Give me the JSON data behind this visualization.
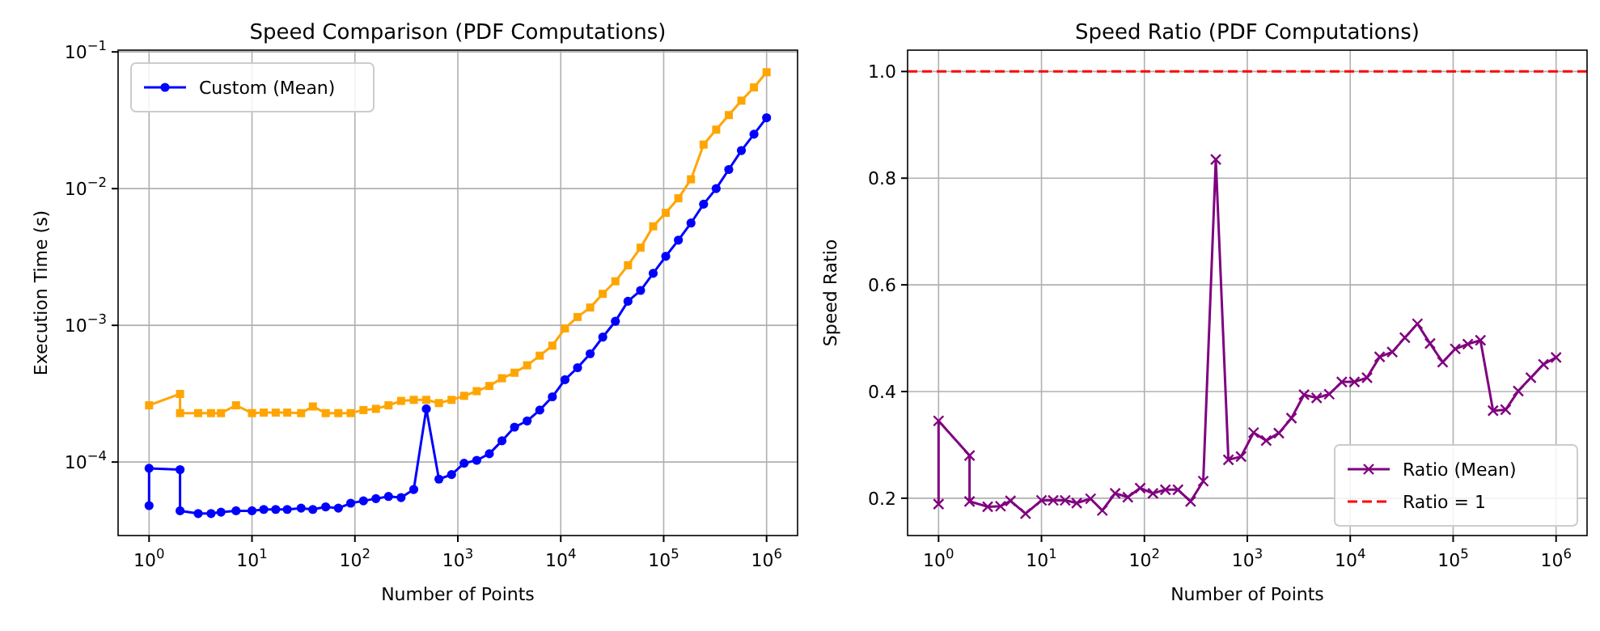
{
  "chart_data": [
    {
      "type": "line",
      "title": "Speed Comparison (PDF Computations)",
      "xlabel": "Number of Points",
      "ylabel": "Execution Time (s)",
      "log": "xy",
      "grid": true,
      "legend": "top left",
      "x": [
        1,
        1,
        2,
        2,
        3,
        4,
        5,
        7,
        10,
        13,
        17,
        22,
        30,
        39,
        52,
        69,
        91,
        121,
        160,
        212,
        281,
        373,
        494,
        655,
        869,
        1151,
        1526,
        2024,
        2683,
        3556,
        4715,
        6251,
        8286,
        10985,
        14563,
        19307,
        25595,
        33932,
        44984,
        59636,
        79060,
        104811,
        138950,
        184207,
        244205,
        323746,
        429193,
        568987,
        754312,
        1000000
      ],
      "xlim": [
        0.5,
        2000000
      ],
      "xticks": [
        {
          "value": 1,
          "label": "10$^{0}$"
        },
        {
          "value": 10,
          "label": "10$^{1}$"
        },
        {
          "value": 100,
          "label": "10$^{2}$"
        },
        {
          "value": 1000,
          "label": "10$^{3}$"
        },
        {
          "value": 10000,
          "label": "10$^{4}$"
        },
        {
          "value": 100000,
          "label": "10$^{5}$"
        },
        {
          "value": 1000000,
          "label": "10$^{6}$"
        }
      ],
      "ylim": [
        2.9e-05,
        0.103
      ],
      "yticks": [
        {
          "value": 0.0001,
          "label": "10$^{−4}$"
        },
        {
          "value": 0.001,
          "label": "10$^{−3}$"
        },
        {
          "value": 0.01,
          "label": "10$^{−2}$"
        },
        {
          "value": 0.1,
          "label": "10$^{−1}$"
        }
      ],
      "series": [
        {
          "name": "Custom (Mean)",
          "color": "#0000ff",
          "marker": "circle",
          "values": [
            4.8e-05,
            9e-05,
            8.8e-05,
            4.4e-05,
            4.2e-05,
            4.2e-05,
            4.3e-05,
            4.4e-05,
            4.4e-05,
            4.5e-05,
            4.5e-05,
            4.5e-05,
            4.6e-05,
            4.5e-05,
            4.7e-05,
            4.6e-05,
            5e-05,
            5.2e-05,
            5.4e-05,
            5.6e-05,
            5.5e-05,
            6.3e-05,
            0.000245,
            7.5e-05,
            8.1e-05,
            9.8e-05,
            0.000103,
            0.000115,
            0.000143,
            0.00018,
            0.0002,
            0.00024,
            0.0003,
            0.0004,
            0.00049,
            0.00062,
            0.00082,
            0.00107,
            0.0015,
            0.0018,
            0.0024,
            0.0032,
            0.0042,
            0.0056,
            0.0077,
            0.01,
            0.0138,
            0.019,
            0.025,
            0.033
          ]
        },
        {
          "color": "#ffa500",
          "marker": "square",
          "values": [
            null,
            0.00026,
            0.000315,
            0.000228,
            0.000228,
            0.000228,
            0.000228,
            0.00026,
            0.000228,
            0.00023,
            0.00023,
            0.00023,
            0.000228,
            0.000255,
            0.000228,
            0.000228,
            0.000228,
            0.00024,
            0.000245,
            0.00026,
            0.00028,
            0.000285,
            0.000285,
            0.00027,
            0.000285,
            0.000305,
            0.00033,
            0.00036,
            0.00041,
            0.00045,
            0.00051,
            0.0006,
            0.00071,
            0.00095,
            0.00115,
            0.00135,
            0.0017,
            0.0021,
            0.00275,
            0.0037,
            0.0053,
            0.00665,
            0.0085,
            0.0117,
            0.021,
            0.027,
            0.0345,
            0.044,
            0.055,
            0.071
          ]
        }
      ]
    },
    {
      "type": "line",
      "title": "Speed Ratio (PDF Computations)",
      "xlabel": "Number of Points",
      "ylabel": "Speed Ratio",
      "log": "x",
      "grid": true,
      "legend": "bottom right",
      "x": [
        1,
        1,
        2,
        2,
        3,
        4,
        5,
        7,
        10,
        13,
        17,
        22,
        30,
        39,
        52,
        69,
        91,
        121,
        160,
        212,
        281,
        373,
        494,
        655,
        869,
        1151,
        1526,
        2024,
        2683,
        3556,
        4715,
        6251,
        8286,
        10985,
        14563,
        19307,
        25595,
        33932,
        44984,
        59636,
        79060,
        104811,
        138950,
        184207,
        244205,
        323746,
        429193,
        568987,
        754312,
        1000000
      ],
      "xlim": [
        0.5,
        2000000
      ],
      "xticks": [
        {
          "value": 1,
          "label": "10$^{0}$"
        },
        {
          "value": 10,
          "label": "10$^{1}$"
        },
        {
          "value": 100,
          "label": "10$^{2}$"
        },
        {
          "value": 1000,
          "label": "10$^{3}$"
        },
        {
          "value": 10000,
          "label": "10$^{4}$"
        },
        {
          "value": 100000,
          "label": "10$^{5}$"
        },
        {
          "value": 1000000,
          "label": "10$^{6}$"
        }
      ],
      "ylim": [
        0.13,
        1.04
      ],
      "yticks": [
        0.2,
        0.4,
        0.6,
        0.8,
        {
          "value": 1,
          "label": "1.0"
        }
      ],
      "series": [
        {
          "name": "Ratio (Mean)",
          "color": "#800080",
          "marker": "cross",
          "values": [
            0.189,
            0.345,
            0.28,
            0.194,
            0.184,
            0.185,
            0.195,
            0.171,
            0.196,
            0.196,
            0.196,
            0.191,
            0.199,
            0.177,
            0.209,
            0.202,
            0.219,
            0.209,
            0.216,
            0.216,
            0.194,
            0.232,
            0.835,
            0.272,
            0.278,
            0.323,
            0.308,
            0.322,
            0.35,
            0.394,
            0.388,
            0.395,
            0.418,
            0.418,
            0.426,
            0.465,
            0.474,
            0.501,
            0.527,
            0.49,
            0.455,
            0.48,
            0.489,
            0.496,
            0.364,
            0.366,
            0.401,
            0.426,
            0.451,
            0.464
          ]
        }
      ],
      "ref_lines": [
        {
          "axis": "y",
          "value": 1,
          "label": "Ratio = 1",
          "color": "#ff0000",
          "line_style": "dashed"
        }
      ]
    }
  ]
}
